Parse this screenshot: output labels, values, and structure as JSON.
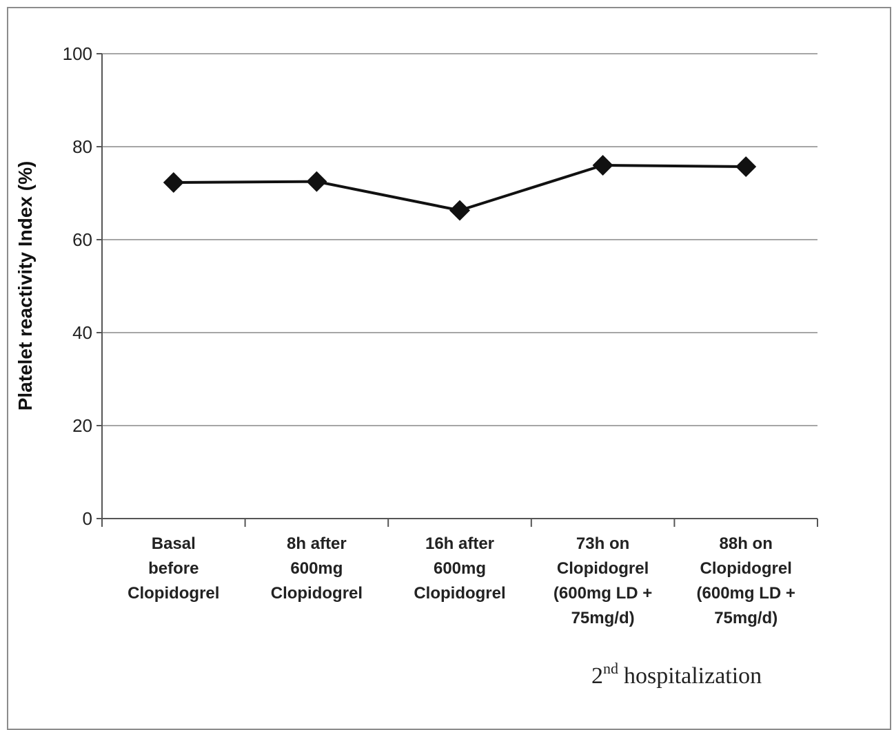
{
  "chart_data": {
    "type": "line",
    "title": "",
    "xlabel": "",
    "ylabel": "Platelet reactivity Index (%)",
    "ylim": [
      0,
      100
    ],
    "yticks": [
      0,
      20,
      40,
      60,
      80,
      100
    ],
    "grid": true,
    "categories": [
      [
        "Basal",
        "before",
        "Clopidogrel"
      ],
      [
        "8h after",
        "600mg",
        "Clopidogrel"
      ],
      [
        "16h after",
        "600mg",
        "Clopidogrel"
      ],
      [
        "73h on",
        "Clopidogrel",
        "(600mg LD +",
        "75mg/d)"
      ],
      [
        "88h on",
        "Clopidogrel",
        "(600mg LD +",
        "75mg/d)"
      ]
    ],
    "series": [
      {
        "values": [
          72.3,
          72.5,
          66.3,
          76.0,
          75.7
        ],
        "color": "#111111",
        "marker": "diamond"
      }
    ],
    "annotation": {
      "base": "2",
      "superscript": "nd",
      "text": "hospitalization"
    }
  }
}
